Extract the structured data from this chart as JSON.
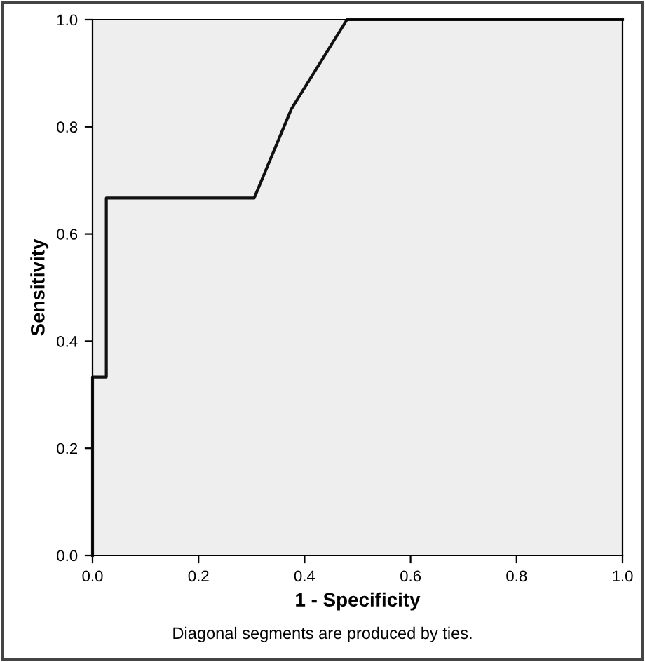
{
  "chart_data": {
    "type": "line",
    "xlabel": "1 - Specificity",
    "ylabel": "Sensitivity",
    "annotations": [
      "Diagonal segments are produced by ties."
    ],
    "series": [
      {
        "color": "#111111",
        "x": [
          0,
          0,
          0.026,
          0.026,
          0.305,
          0.375,
          0.48,
          1.0
        ],
        "values": [
          0,
          0.333,
          0.333,
          0.667,
          0.667,
          0.833,
          1.0,
          1.0
        ]
      }
    ],
    "xlim": [
      0,
      1
    ],
    "ylim": [
      0,
      1
    ],
    "xticks": [
      {
        "value": 0,
        "label": "0.0"
      },
      {
        "value": 0.2,
        "label": "0.2"
      },
      {
        "value": 0.4,
        "label": "0.4"
      },
      {
        "value": 0.6,
        "label": "0.6"
      },
      {
        "value": 0.8,
        "label": "0.8"
      },
      {
        "value": 1,
        "label": "1.0"
      }
    ],
    "yticks": [
      {
        "value": 0,
        "label": "0.0"
      },
      {
        "value": 0.2,
        "label": "0.2"
      },
      {
        "value": 0.4,
        "label": "0.4"
      },
      {
        "value": 0.6,
        "label": "0.6"
      },
      {
        "value": 0.8,
        "label": "0.8"
      },
      {
        "value": 1,
        "label": "1.0"
      }
    ],
    "grid": false,
    "legend": false,
    "marker": "none",
    "line_style": "solid"
  }
}
